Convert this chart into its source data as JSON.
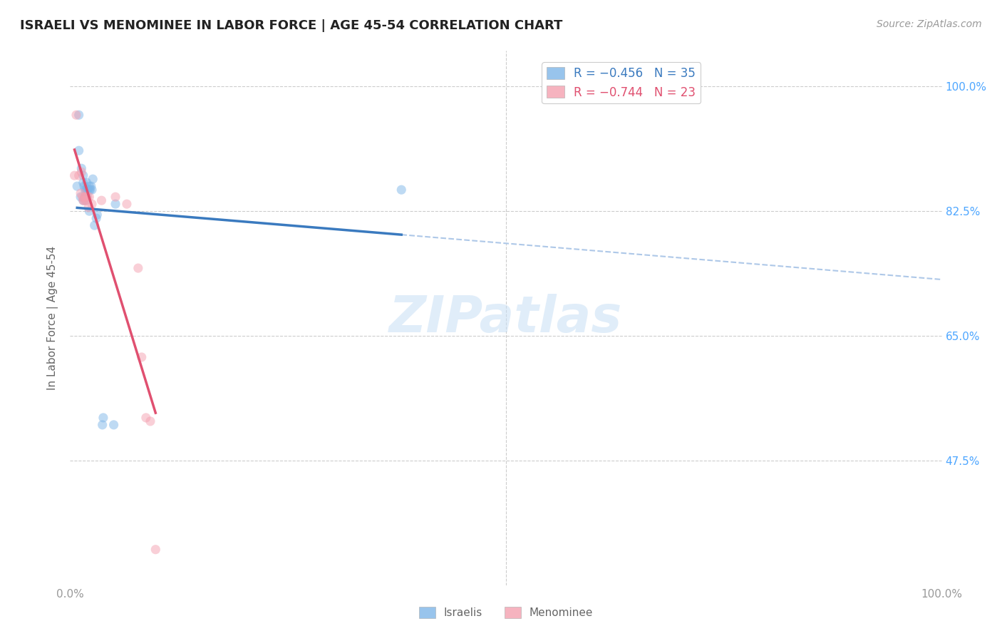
{
  "title": "ISRAELI VS MENOMINEE IN LABOR FORCE | AGE 45-54 CORRELATION CHART",
  "source": "Source: ZipAtlas.com",
  "ylabel": "In Labor Force | Age 45-54",
  "yticks": [
    0.475,
    0.65,
    0.825,
    1.0
  ],
  "ytick_labels": [
    "47.5%",
    "65.0%",
    "82.5%",
    "100.0%"
  ],
  "watermark": "ZIPatlas",
  "legend_line1": "R = −0.456   N = 35",
  "legend_line2": "R = −0.744   N = 23",
  "israelis_x": [
    0.008,
    0.01,
    0.01,
    0.012,
    0.013,
    0.015,
    0.015,
    0.015,
    0.016,
    0.017,
    0.017,
    0.018,
    0.018,
    0.018,
    0.018,
    0.019,
    0.019,
    0.019,
    0.02,
    0.02,
    0.022,
    0.022,
    0.022,
    0.023,
    0.024,
    0.025,
    0.026,
    0.028,
    0.03,
    0.031,
    0.037,
    0.038,
    0.05,
    0.052,
    0.38
  ],
  "israelis_y": [
    0.86,
    0.96,
    0.91,
    0.845,
    0.885,
    0.84,
    0.865,
    0.875,
    0.86,
    0.845,
    0.855,
    0.855,
    0.845,
    0.845,
    0.84,
    0.845,
    0.855,
    0.865,
    0.855,
    0.855,
    0.86,
    0.825,
    0.855,
    0.855,
    0.86,
    0.855,
    0.87,
    0.805,
    0.815,
    0.82,
    0.525,
    0.535,
    0.525,
    0.835,
    0.855
  ],
  "menominee_x": [
    0.005,
    0.007,
    0.01,
    0.012,
    0.013,
    0.014,
    0.015,
    0.016,
    0.017,
    0.017,
    0.018,
    0.02,
    0.021,
    0.022,
    0.025,
    0.036,
    0.052,
    0.065,
    0.078,
    0.082,
    0.087,
    0.092,
    0.098
  ],
  "menominee_y": [
    0.875,
    0.96,
    0.875,
    0.85,
    0.88,
    0.845,
    0.84,
    0.84,
    0.845,
    0.845,
    0.84,
    0.845,
    0.83,
    0.845,
    0.835,
    0.84,
    0.845,
    0.835,
    0.745,
    0.62,
    0.535,
    0.53,
    0.35
  ],
  "background_color": "#ffffff",
  "scatter_alpha": 0.5,
  "scatter_size": 90,
  "israeli_color": "#7eb6e8",
  "menominee_color": "#f4a0b0",
  "trend_israeli_color": "#3a7abf",
  "trend_menominee_color": "#e05070",
  "trend_linewidth": 2.5,
  "dashed_line_color": "#aec8e8",
  "xlim": [
    0.0,
    1.0
  ],
  "ylim": [
    0.3,
    1.05
  ]
}
